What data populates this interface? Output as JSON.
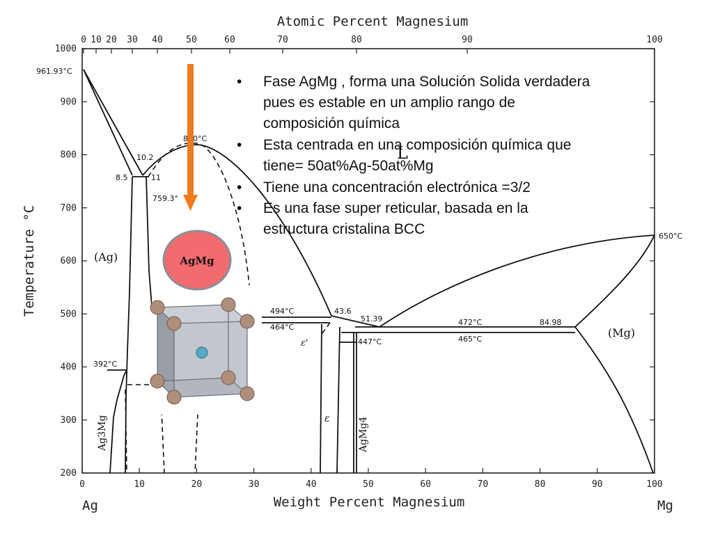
{
  "diagram": {
    "top_axis_title": "Atomic Percent Magnesium",
    "top_ticks": [
      "0",
      "10",
      "20",
      "30",
      "40",
      "50",
      "60",
      "70",
      "80",
      "90",
      "100"
    ],
    "bottom_axis_title": "Weight Percent Magnesium",
    "bottom_ticks": [
      "0",
      "10",
      "20",
      "30",
      "40",
      "50",
      "60",
      "70",
      "80",
      "90",
      "100"
    ],
    "left_end_label": "Ag",
    "right_end_label": "Mg",
    "y_axis_title": "Temperature °C",
    "y_ticks": [
      "1000",
      "900",
      "800",
      "700",
      "600",
      "500",
      "400",
      "300",
      "200"
    ],
    "phase_labels": {
      "ag": "(Ag)",
      "mg": "(Mg)",
      "liquid": "L",
      "agmg": "AgMg",
      "ag3mg": "Ag3Mg",
      "agmg4": "AgMg4",
      "epsilon": "ε",
      "epsilon_prime": "ε'"
    },
    "annotations": {
      "ag_melt": "961.93°C",
      "congruent": "820°C",
      "c10_2": "10.2",
      "c8_5": "8.5",
      "c11": "11",
      "t759": "759.3°",
      "t392": "392°C",
      "t494": "494°C",
      "t464": "464°C",
      "c43_6": "43.6",
      "c51_39": "51.39",
      "t447": "447°C",
      "t472": "472°C",
      "c84_98": "84.98",
      "t465": "465°C",
      "mg_melt": "650°C"
    }
  },
  "slide": {
    "agmg_badge": "AgMg",
    "bullets": [
      "Fase AgMg , forma una Solución Solida verdadera\npues es estable en un amplio rango de\ncomposición química",
      "Esta centrada en una composición química que\ntiene= 50at%Ag-50at%Mg",
      "Tiene una concentración electrónica =3/2",
      "Es una fase super reticular, basada en la\nestructura cristalina BCC"
    ],
    "bullet_char": "•",
    "colors": {
      "arrow": "#f07a20",
      "badge_fill": "#f26b6e",
      "badge_stroke": "#8a8f99",
      "atom_corner": "#b08e7c",
      "atom_center": "#58a9c4"
    }
  }
}
